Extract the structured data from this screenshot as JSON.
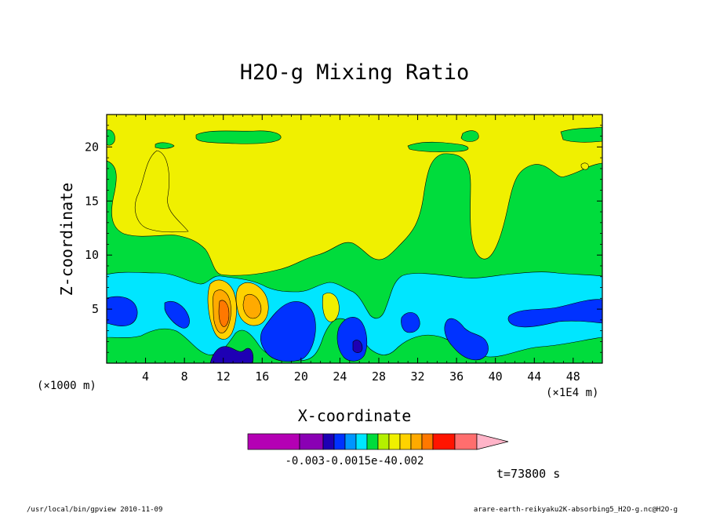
{
  "chart_data": {
    "type": "heatmap",
    "subtype": "filled-contour",
    "title": "H2O-g Mixing Ratio",
    "xlabel": "X-coordinate",
    "ylabel": "Z-coordinate",
    "x_unit": "(×1E4 m)",
    "y_unit": "(×1000 m)",
    "xlim": [
      0,
      51
    ],
    "ylim": [
      0,
      23
    ],
    "x_ticks": [
      "4",
      "8",
      "12",
      "16",
      "20",
      "24",
      "28",
      "32",
      "36",
      "40",
      "44",
      "48"
    ],
    "y_ticks": [
      "5",
      "10",
      "15",
      "20"
    ],
    "colorbar": {
      "colors": [
        "#b400b4",
        "#8a00b4",
        "#1e00b4",
        "#0032ff",
        "#0096ff",
        "#00e6ff",
        "#00dc3c",
        "#b4f000",
        "#f0f000",
        "#ffd200",
        "#ffaa00",
        "#ff7800",
        "#ff1400",
        "#ff6e6e",
        "#ffb4c8"
      ],
      "labels": [
        "-0.003",
        "-0.0015e-4",
        "0.002"
      ],
      "grid": false
    },
    "annotation": "t=73800 s",
    "footer_left": "/usr/local/bin/gpview   2010-11-09",
    "footer_right": "arare-earth-reikyaku2K-absorbing5_H2O-g.nc@H2O-g"
  }
}
